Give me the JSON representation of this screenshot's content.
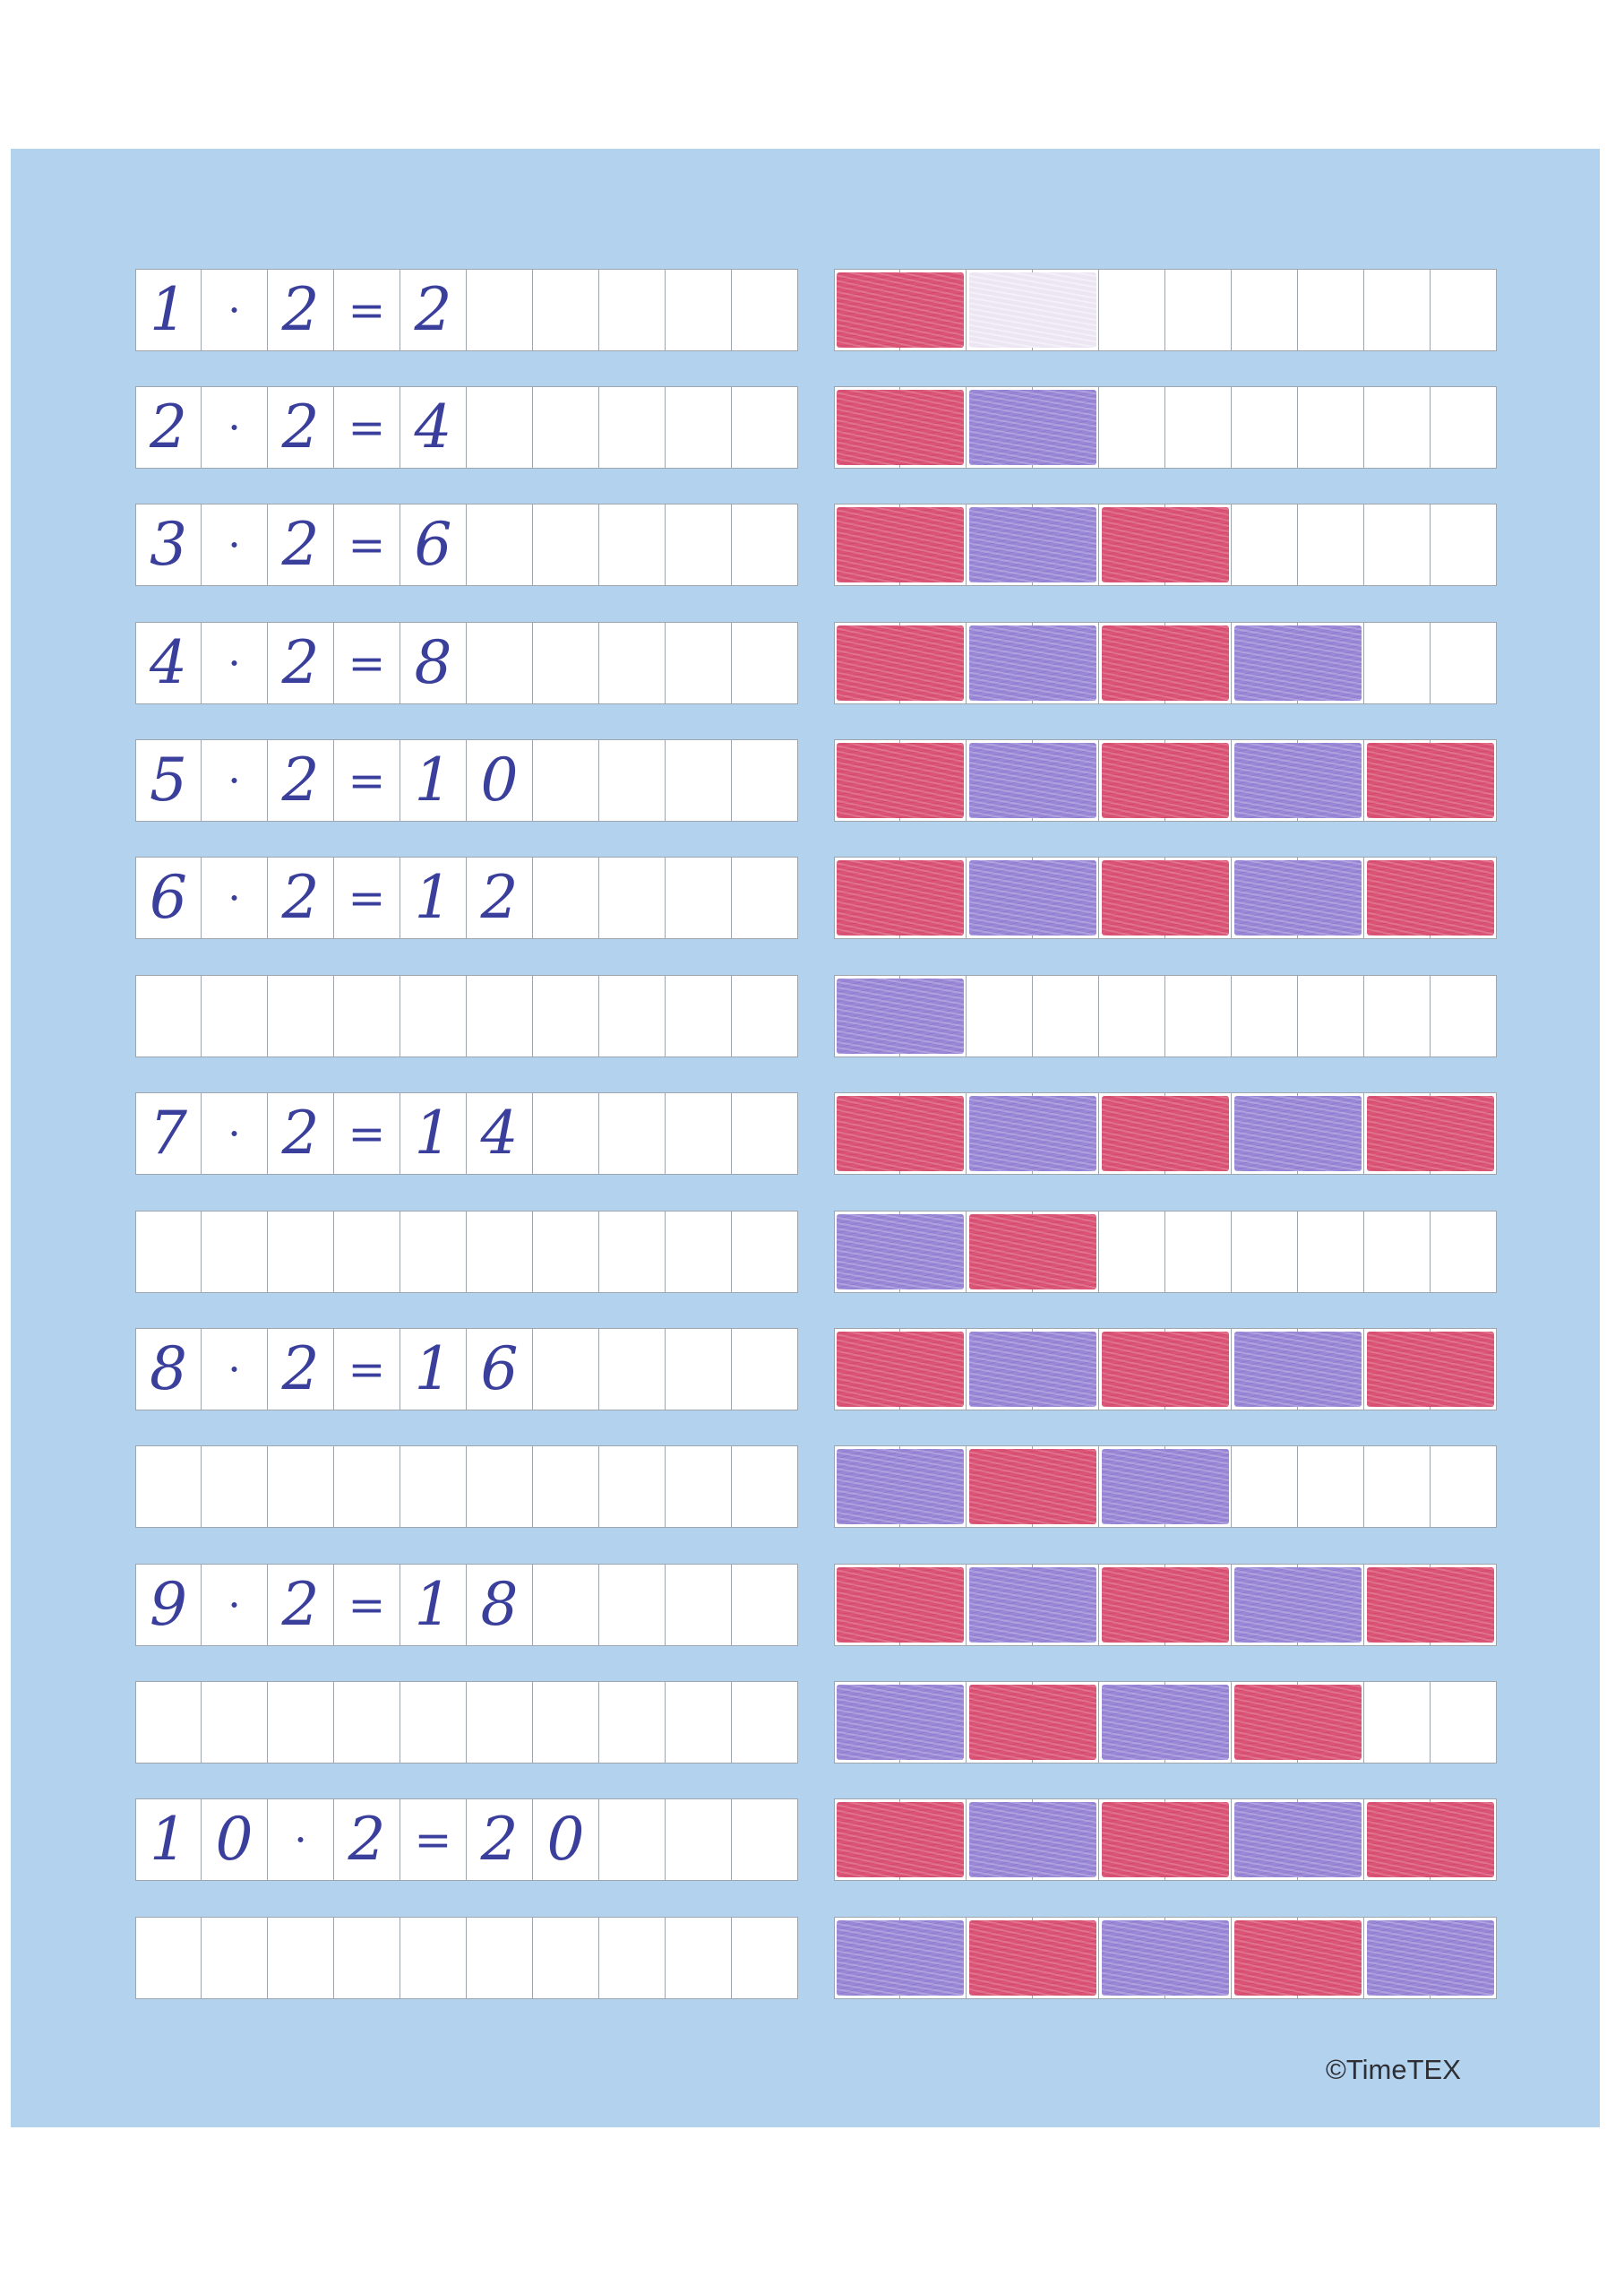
{
  "rows": [
    {
      "eq": [
        "1",
        "·",
        "2",
        "=",
        "2"
      ],
      "blocks": [
        "red",
        "faint"
      ]
    },
    {
      "eq": [
        "2",
        "·",
        "2",
        "=",
        "4"
      ],
      "blocks": [
        "red",
        "purple"
      ]
    },
    {
      "eq": [
        "3",
        "·",
        "2",
        "=",
        "6"
      ],
      "blocks": [
        "red",
        "purple",
        "red"
      ]
    },
    {
      "eq": [
        "4",
        "·",
        "2",
        "=",
        "8"
      ],
      "blocks": [
        "red",
        "purple",
        "red",
        "purple"
      ]
    },
    {
      "eq": [
        "5",
        "·",
        "2",
        "=",
        "1",
        "0"
      ],
      "blocks": [
        "red",
        "purple",
        "red",
        "purple",
        "red"
      ]
    },
    {
      "eq": [
        "6",
        "·",
        "2",
        "=",
        "1",
        "2"
      ],
      "blocks": [
        "red",
        "purple",
        "red",
        "purple",
        "red"
      ]
    },
    {
      "eq": [],
      "blocks": [
        "purple"
      ]
    },
    {
      "eq": [
        "7",
        "·",
        "2",
        "=",
        "1",
        "4"
      ],
      "blocks": [
        "red",
        "purple",
        "red",
        "purple",
        "red"
      ]
    },
    {
      "eq": [],
      "blocks": [
        "purple",
        "red"
      ]
    },
    {
      "eq": [
        "8",
        "·",
        "2",
        "=",
        "1",
        "6"
      ],
      "blocks": [
        "red",
        "purple",
        "red",
        "purple",
        "red"
      ]
    },
    {
      "eq": [],
      "blocks": [
        "purple",
        "red",
        "purple"
      ]
    },
    {
      "eq": [
        "9",
        "·",
        "2",
        "=",
        "1",
        "8"
      ],
      "blocks": [
        "red",
        "purple",
        "red",
        "purple",
        "red"
      ]
    },
    {
      "eq": [],
      "blocks": [
        "purple",
        "red",
        "purple",
        "red"
      ]
    },
    {
      "eq": [
        "1",
        "0",
        "·",
        "2",
        "=",
        "2",
        "0"
      ],
      "blocks": [
        "red",
        "purple",
        "red",
        "purple",
        "red"
      ]
    },
    {
      "eq": [],
      "blocks": [
        "purple",
        "red",
        "purple",
        "red",
        "purple"
      ]
    }
  ],
  "colors": {
    "red": "#db5476",
    "purple": "#9a88d6",
    "sheet": "#b3d2ee"
  },
  "credit": "©TimeTEX"
}
